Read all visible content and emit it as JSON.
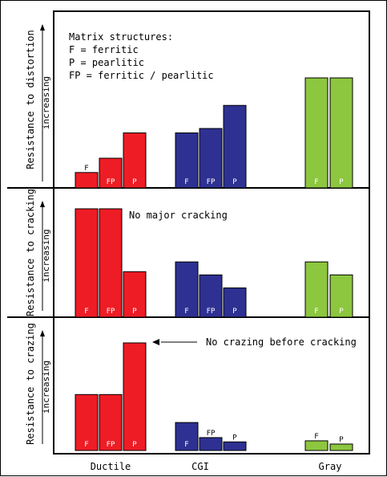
{
  "chart_data": {
    "type": "bar",
    "groups": [
      {
        "name": "Ductile",
        "color": "#ee1c25",
        "bars": [
          {
            "label": "F"
          },
          {
            "label": "FP"
          },
          {
            "label": "P"
          }
        ]
      },
      {
        "name": "CGI",
        "color": "#2e3192",
        "bars": [
          {
            "label": "F"
          },
          {
            "label": "FP"
          },
          {
            "label": "P"
          }
        ]
      },
      {
        "name": "Gray",
        "color": "#8dc63f",
        "bars": [
          {
            "label": "F"
          },
          {
            "label": "P"
          }
        ]
      }
    ],
    "panels": [
      {
        "ylabel": "Resistance to distortion",
        "sublabel": "increasing",
        "values": [
          [
            0.14,
            0.27,
            0.5
          ],
          [
            0.5,
            0.54,
            0.75
          ],
          [
            1.0,
            1.0
          ]
        ],
        "legend": [
          "Matrix structures:",
          "F = ferritic",
          "P = pearlitic",
          "FP = ferritic / pearlitic"
        ]
      },
      {
        "ylabel": "Resistance to cracking",
        "sublabel": "increasing",
        "values": [
          [
            1.0,
            1.0,
            0.42
          ],
          [
            0.51,
            0.39,
            0.27
          ],
          [
            0.51,
            0.39
          ]
        ],
        "annotation": "No major cracking"
      },
      {
        "ylabel": "Resistance to crazing",
        "sublabel": "increasing",
        "values": [
          [
            0.52,
            0.52,
            1.0
          ],
          [
            0.26,
            0.12,
            0.08
          ],
          [
            0.09,
            0.06
          ]
        ],
        "annotation": "No crazing before cracking"
      }
    ]
  }
}
